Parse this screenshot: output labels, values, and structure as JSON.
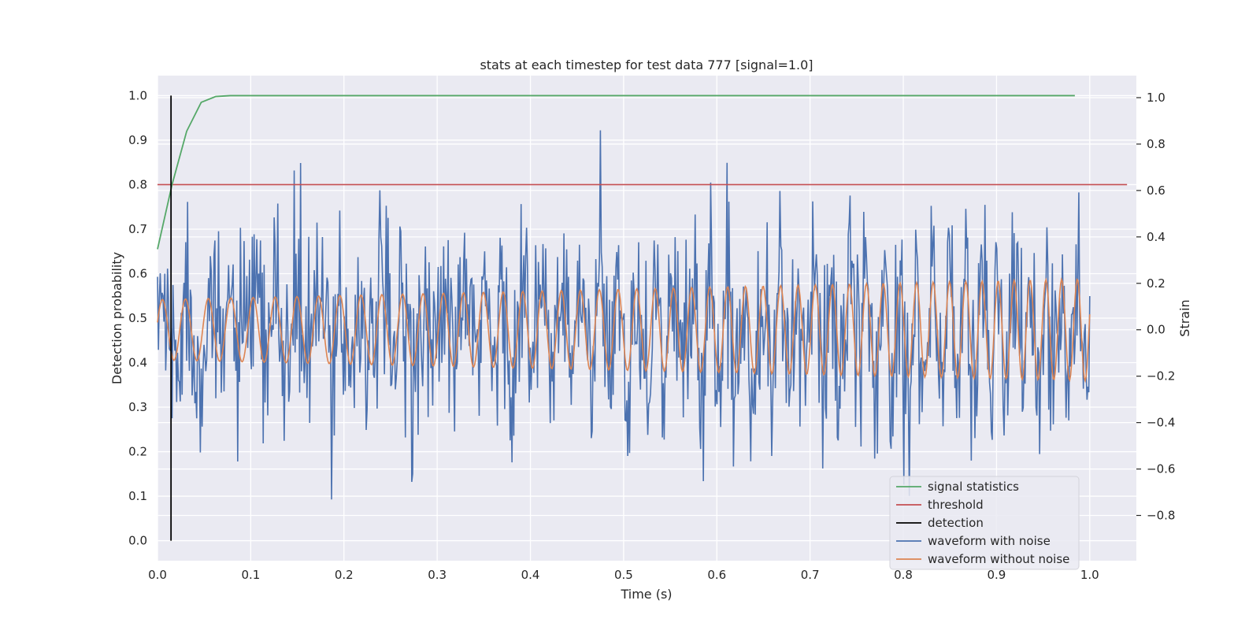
{
  "chart_data": {
    "type": "line",
    "title": "stats at each timestep for test data 777 [signal=1.0]",
    "xlabel": "Time (s)",
    "ylabel_left": "Detection probability",
    "ylabel_right": "Strain",
    "xlim": [
      0.0,
      1.05
    ],
    "ylim_left": [
      -0.045,
      1.045
    ],
    "ylim_right": [
      -0.995,
      1.095
    ],
    "x_ticks": [
      "0.0",
      "0.1",
      "0.2",
      "0.3",
      "0.4",
      "0.5",
      "0.6",
      "0.7",
      "0.8",
      "0.9",
      "1.0"
    ],
    "y_left_ticks": [
      "0.0",
      "0.1",
      "0.2",
      "0.3",
      "0.4",
      "0.5",
      "0.6",
      "0.7",
      "0.8",
      "0.9",
      "1.0"
    ],
    "y_right_ticks": [
      "−0.8",
      "−0.6",
      "−0.4",
      "−0.2",
      "0.0",
      "0.2",
      "0.4",
      "0.6",
      "0.8",
      "1.0"
    ],
    "grid": true,
    "legend_position": "lower-right",
    "legend": [
      {
        "label": "signal statistics",
        "color": "#55a868"
      },
      {
        "label": "threshold",
        "color": "#c44e52"
      },
      {
        "label": "detection",
        "color": "#000000"
      },
      {
        "label": "waveform with noise",
        "color": "#4c72b0"
      },
      {
        "label": "waveform without noise",
        "color": "#dd8452"
      }
    ],
    "signal_statistics": {
      "axis": "left",
      "x": [
        0.0,
        0.0156,
        0.0313,
        0.0469,
        0.0625,
        0.0781,
        0.2,
        0.4,
        0.6,
        0.8,
        0.984
      ],
      "y": [
        0.655,
        0.8,
        0.92,
        0.985,
        0.998,
        1.0,
        1.0,
        1.0,
        1.0,
        1.0,
        1.0
      ]
    },
    "threshold": {
      "axis": "left",
      "value": 0.8,
      "x_range": [
        0.0,
        1.04
      ]
    },
    "detection": {
      "axis": "left",
      "x": 0.0145,
      "y_range": [
        0.0,
        1.0
      ]
    },
    "waveform_without_noise": {
      "axis": "right",
      "x_range": [
        0.0,
        1.0
      ],
      "description_freq_start_hz": 40,
      "description_freq_end_hz": 60,
      "amplitude_start": 0.13,
      "amplitude_end": 0.22
    },
    "waveform_with_noise": {
      "axis": "right",
      "x_range": [
        0.0,
        1.0
      ],
      "noise_std": 0.21,
      "y_min": -0.9,
      "y_max": 0.9
    }
  }
}
